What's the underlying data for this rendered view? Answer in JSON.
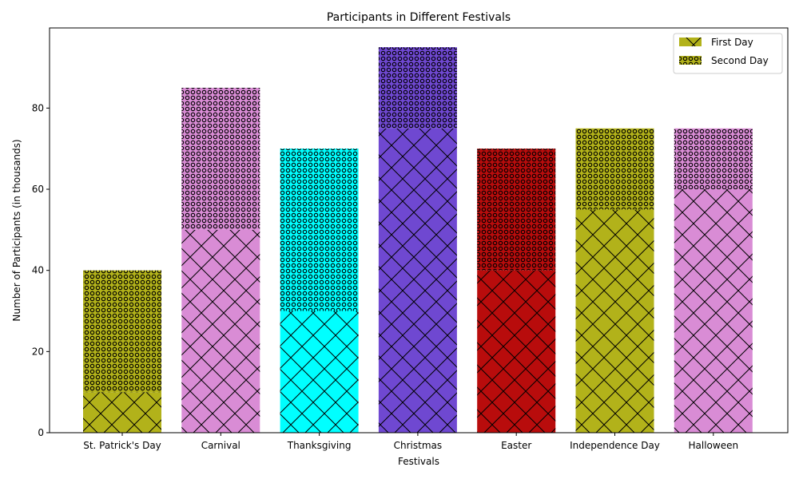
{
  "chart_data": {
    "type": "bar",
    "stacked": true,
    "title": "Participants in Different Festivals",
    "xlabel": "Festivals",
    "ylabel": "Number of Participants (in thousands)",
    "categories": [
      "St. Patrick's Day",
      "Carnival",
      "Thanksgiving",
      "Christmas",
      "Easter",
      "Independence Day",
      "Halloween"
    ],
    "category_colors": [
      "#b2b21a",
      "#d98cd5",
      "#00ffff",
      "#6f48d1",
      "#b80c0c",
      "#b2b21a",
      "#d98cd5"
    ],
    "series": [
      {
        "name": "First Day",
        "values": [
          10,
          50,
          30,
          75,
          40,
          55,
          60
        ],
        "hatch": "cross"
      },
      {
        "name": "Second Day",
        "values": [
          30,
          35,
          40,
          20,
          30,
          20,
          15
        ],
        "hatch": "circles"
      }
    ],
    "ylim": [
      0,
      100
    ],
    "yticks": [
      0,
      20,
      40,
      60,
      80
    ],
    "legend_position": "top-right",
    "legend_color": "#b2b21a",
    "grid": false
  }
}
